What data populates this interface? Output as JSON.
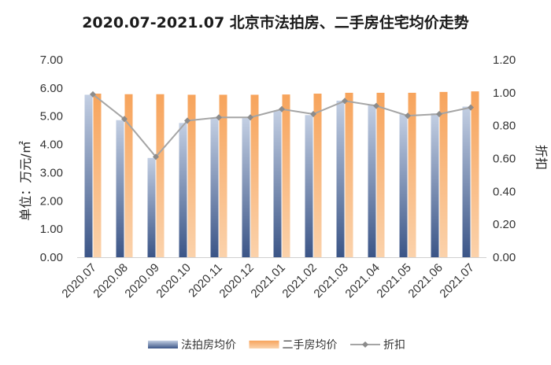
{
  "chart_data": {
    "type": "bar",
    "title": "2020.07-2021.07 北京市法拍房、二手房住宅均价走势",
    "categories": [
      "2020.07",
      "2020.08",
      "2020.09",
      "2020.10",
      "2020.11",
      "2020.12",
      "2021.01",
      "2021.02",
      "2021.03",
      "2021.04",
      "2021.05",
      "2021.06",
      "2021.07"
    ],
    "series": [
      {
        "name": "法拍房均价",
        "type": "bar",
        "axis": "left",
        "color": "#4a6494",
        "values": [
          5.76,
          4.86,
          3.52,
          4.76,
          4.94,
          4.93,
          5.2,
          5.04,
          5.55,
          5.42,
          5.07,
          5.1,
          5.34
        ]
      },
      {
        "name": "二手房均价",
        "type": "bar",
        "axis": "left",
        "color": "#f3964a",
        "values": [
          5.8,
          5.78,
          5.78,
          5.76,
          5.76,
          5.76,
          5.77,
          5.8,
          5.83,
          5.83,
          5.83,
          5.86,
          5.88
        ]
      },
      {
        "name": "折扣",
        "type": "line",
        "axis": "right",
        "color": "#a5a5a5",
        "values": [
          0.99,
          0.84,
          0.61,
          0.83,
          0.85,
          0.85,
          0.9,
          0.87,
          0.95,
          0.92,
          0.86,
          0.87,
          0.91
        ]
      }
    ],
    "y_left": {
      "label": "单位：万元/㎡",
      "ylim": [
        0,
        7
      ],
      "ticks": [
        "0.00",
        "1.00",
        "2.00",
        "3.00",
        "4.00",
        "5.00",
        "6.00",
        "7.00"
      ]
    },
    "y_right": {
      "label": "折扣",
      "ylim": [
        0,
        1.2
      ],
      "ticks": [
        "0.00",
        "0.20",
        "0.40",
        "0.60",
        "0.80",
        "1.00",
        "1.20"
      ]
    },
    "grid": false,
    "legend_position": "bottom"
  }
}
